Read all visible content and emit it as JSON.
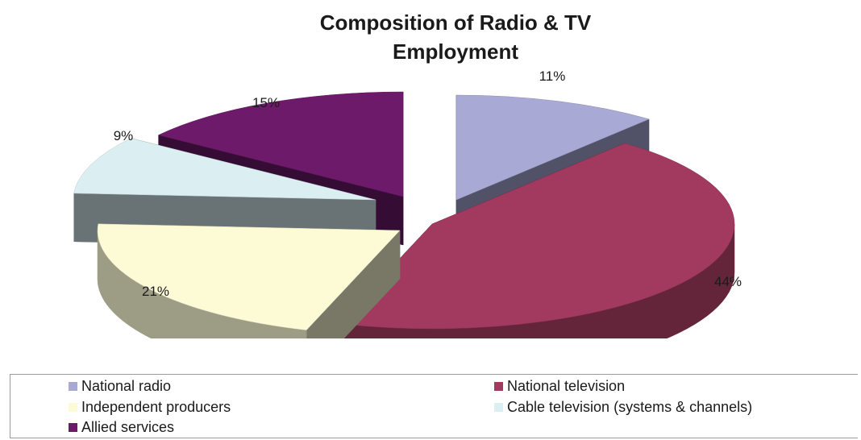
{
  "chart_data": {
    "type": "pie",
    "title_lines": [
      "Composition of  Radio & TV",
      "Employment"
    ],
    "three_d": true,
    "exploded": true,
    "legend_position": "bottom",
    "slices": [
      {
        "name": "National radio",
        "value": 11,
        "label": "11%",
        "color": "#a9a9d6"
      },
      {
        "name": "National television",
        "value": 44,
        "label": "44%",
        "color": "#a13a5e"
      },
      {
        "name": "Independent producers",
        "value": 21,
        "label": "21%",
        "color": "#fdfbd6"
      },
      {
        "name": "Cable television (systems & channels)",
        "value": 9,
        "label": "9%",
        "color": "#dbeff3"
      },
      {
        "name": "Allied services",
        "value": 15,
        "label": "15%",
        "color": "#6e1a6b"
      }
    ]
  }
}
